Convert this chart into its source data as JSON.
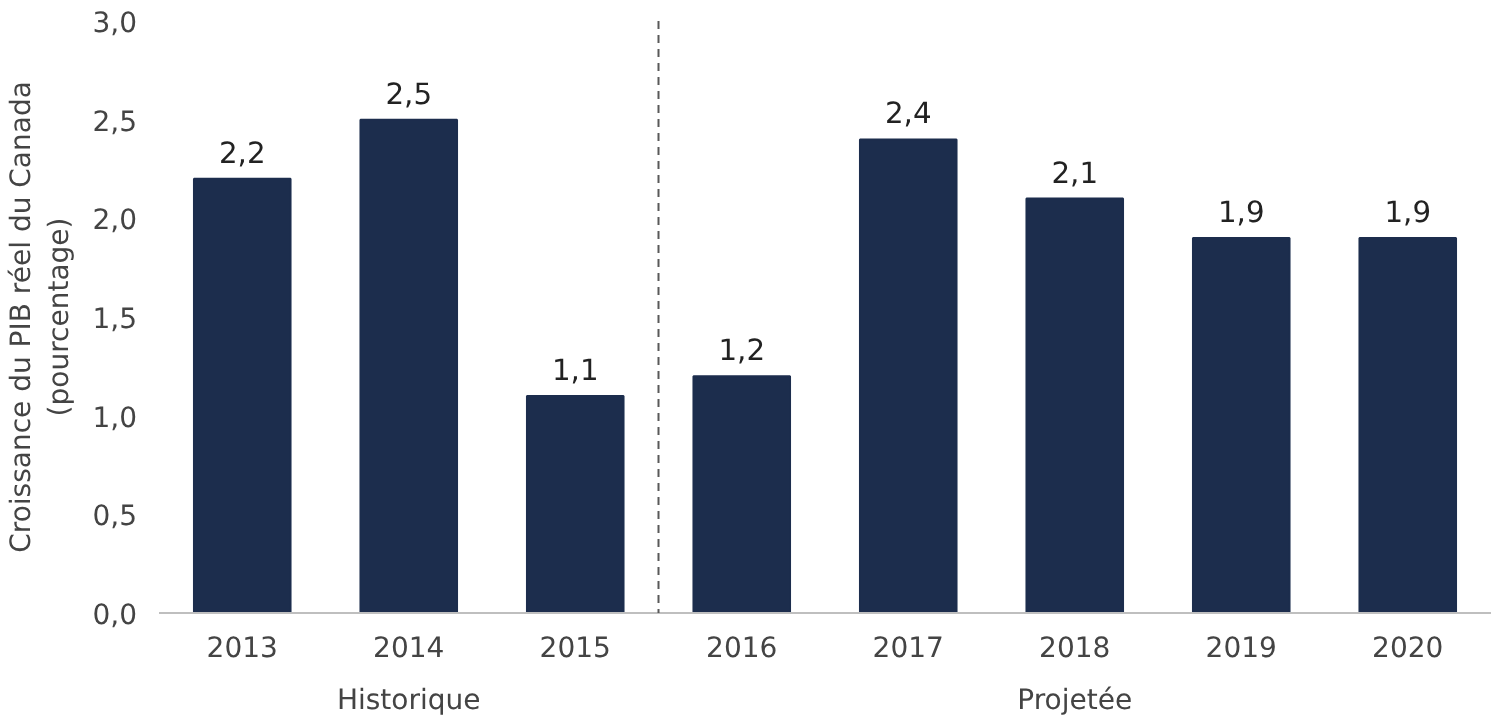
{
  "chart_data": {
    "type": "bar",
    "ylabel": "Croissance du PIB réel du Canada\n(pourcentage)",
    "categories": [
      "2013",
      "2014",
      "2015",
      "2016",
      "2017",
      "2018",
      "2019",
      "2020"
    ],
    "values": [
      2.2,
      2.5,
      1.1,
      1.2,
      2.4,
      2.1,
      1.9,
      1.9
    ],
    "value_labels": [
      "2,2",
      "2,5",
      "1,1",
      "1,2",
      "2,4",
      "2,1",
      "1,9",
      "1,9"
    ],
    "color": "#1c2d4d",
    "ylim": [
      0,
      3
    ],
    "yticks": [
      {
        "value": 0,
        "label": "0,0"
      },
      {
        "value": 0.5,
        "label": "0,5"
      },
      {
        "value": 1,
        "label": "1,0"
      },
      {
        "value": 1.5,
        "label": "1,5"
      },
      {
        "value": 2,
        "label": "2,0"
      },
      {
        "value": 2.5,
        "label": "2,5"
      },
      {
        "value": 3,
        "label": "3,0"
      }
    ],
    "grid": false,
    "annotations": [
      "Historique",
      "Projetée"
    ]
  }
}
